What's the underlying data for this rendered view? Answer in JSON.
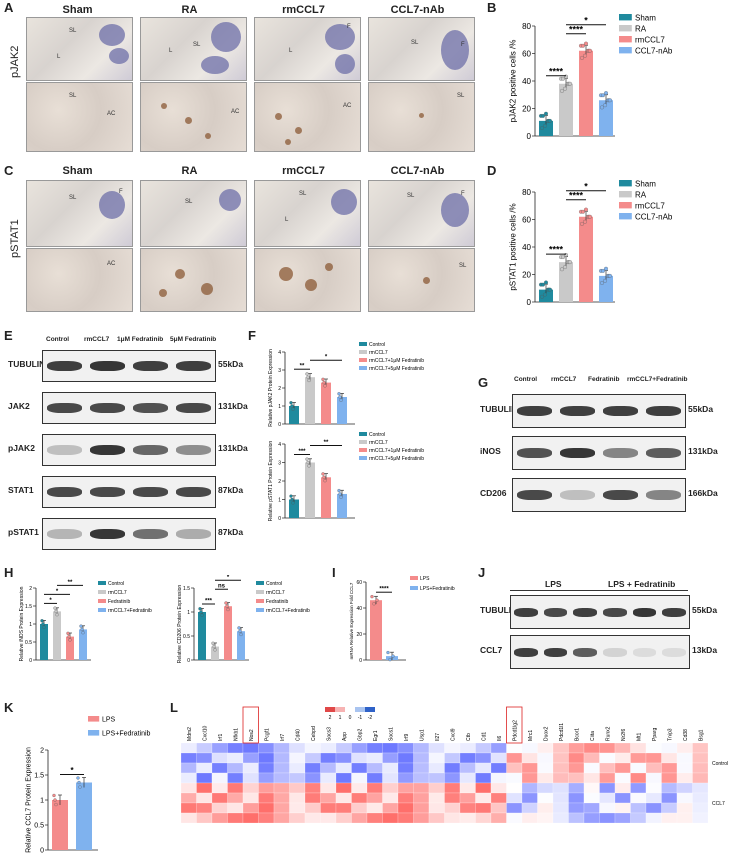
{
  "panels": {
    "A": "A",
    "B": "B",
    "C": "C",
    "D": "D",
    "E": "E",
    "F": "F",
    "G": "G",
    "H": "H",
    "I": "I",
    "J": "J",
    "K": "K",
    "L": "L"
  },
  "ihc_groups": [
    "Sham",
    "RA",
    "rmCCL7",
    "CCL7-nAb"
  ],
  "ihc_markers": {
    "a": "pJAK2",
    "c": "pSTAT1"
  },
  "tissue_labels": {
    "sl": "SL",
    "f": "F",
    "l": "L",
    "ac": "AC"
  },
  "colors": {
    "sham": "#1f8a9e",
    "ra": "#c9c9c9",
    "rmccl7": "#f48b8b",
    "nab": "#7fb2ee",
    "ctrl": "#1f8a9e"
  },
  "chart_data": [
    {
      "id": "B",
      "type": "bar",
      "categories": [
        "Sham",
        "RA",
        "rmCCL7",
        "CCL7-nAb"
      ],
      "values": [
        11,
        38,
        62,
        26
      ],
      "ylabel": "pJAK2 positive cells /%",
      "ylim": [
        0,
        80
      ],
      "yticks": [
        0,
        20,
        40,
        60,
        80
      ],
      "sig": [
        {
          "from": 0,
          "to": 1,
          "label": "****"
        },
        {
          "from": 1,
          "to": 2,
          "label": "****"
        },
        {
          "from": 1,
          "to": 3,
          "label": "*"
        }
      ],
      "legend": [
        "Sham",
        "RA",
        "rmCCL7",
        "CCL7-nAb"
      ]
    },
    {
      "id": "D",
      "type": "bar",
      "categories": [
        "Sham",
        "RA",
        "rmCCL7",
        "CCL7-nAb"
      ],
      "values": [
        9,
        29,
        62,
        19
      ],
      "ylabel": "pSTAT1 positive cells /%",
      "ylim": [
        0,
        80
      ],
      "yticks": [
        0,
        20,
        40,
        60,
        80
      ],
      "sig": [
        {
          "from": 0,
          "to": 1,
          "label": "****"
        },
        {
          "from": 1,
          "to": 2,
          "label": "****"
        },
        {
          "from": 1,
          "to": 3,
          "label": "*"
        }
      ],
      "legend": [
        "Sham",
        "RA",
        "rmCCL7",
        "CCL7-nAb"
      ]
    },
    {
      "id": "F1",
      "type": "bar",
      "categories": [
        "Control",
        "rmCCL7",
        "rmCCL7+1μM Fedratinib",
        "rmCCL7+5μM Fedratinib"
      ],
      "values": [
        1.0,
        2.6,
        2.3,
        1.5
      ],
      "ylabel": "Relative pJAK2 Protein Expression",
      "ylim": [
        0,
        4
      ],
      "yticks": [
        0,
        1,
        2,
        3,
        4
      ],
      "sig": [
        {
          "from": 0,
          "to": 1,
          "label": "**"
        },
        {
          "from": 1,
          "to": 3,
          "label": "*"
        }
      ],
      "legend": [
        "Control",
        "rmCCL7",
        "rmCCL7+1μM  Fedratinib",
        "rmCCL7+5μM  Fedratinib"
      ]
    },
    {
      "id": "F2",
      "type": "bar",
      "categories": [
        "Control",
        "rmCCL7",
        "rmCCL7+1μM Fedratinib",
        "rmCCL7+5μM Fedratinib"
      ],
      "values": [
        1.0,
        3.0,
        2.2,
        1.3
      ],
      "ylabel": "Relative pSTAT1 Protein Expression",
      "ylim": [
        0,
        4
      ],
      "yticks": [
        0,
        1,
        2,
        3,
        4
      ],
      "sig": [
        {
          "from": 0,
          "to": 1,
          "label": "***"
        },
        {
          "from": 1,
          "to": 3,
          "label": "**"
        }
      ],
      "legend": [
        "Control",
        "rmCCL7",
        "rmCCL7+1μM Fedratinib",
        "rmCCL7+5μM Fedratinib"
      ]
    },
    {
      "id": "H1",
      "type": "bar",
      "categories": [
        "Control",
        "rmCCL7",
        "Fedratinib",
        "rmCCL7+Fedratinib"
      ],
      "values": [
        1.0,
        1.35,
        0.65,
        0.85
      ],
      "ylabel": "Relative iNOS Protein Expression",
      "ylim": [
        0,
        2
      ],
      "yticks": [
        0,
        0.5,
        1.0,
        1.5,
        2.0
      ],
      "sig": [
        {
          "from": 0,
          "to": 1,
          "label": "*"
        },
        {
          "from": 0,
          "to": 2,
          "label": "*"
        },
        {
          "from": 1,
          "to": 3,
          "label": "**"
        }
      ],
      "legend": [
        "Control",
        "rmCCL7",
        "Fedratinib",
        "rmCCL7+Fedratinib"
      ]
    },
    {
      "id": "H2",
      "type": "bar",
      "categories": [
        "Control",
        "rmCCL7",
        "Fedratinib",
        "rmCCL7+Fedratinib"
      ],
      "values": [
        1.0,
        0.28,
        1.12,
        0.6
      ],
      "ylabel": "Relative CD206 Protein Expression",
      "ylim": [
        0,
        1.5
      ],
      "yticks": [
        0,
        0.5,
        1.0,
        1.5
      ],
      "sig": [
        {
          "from": 0,
          "to": 1,
          "label": "***"
        },
        {
          "from": 1,
          "to": 2,
          "label": "ns"
        },
        {
          "from": 1,
          "to": 3,
          "label": "*"
        }
      ],
      "legend": [
        "Control",
        "rmCCL7",
        "Fedratinib",
        "rmCCL7+Fedratinib"
      ]
    },
    {
      "id": "I",
      "type": "bar",
      "categories": [
        "LPS",
        "LPS+Fedratinib"
      ],
      "values": [
        46,
        3
      ],
      "ylabel": "mRNA Relative Expression Fold CCL7",
      "ylim": [
        0,
        60
      ],
      "yticks": [
        0,
        20,
        40,
        60
      ],
      "sig": [
        {
          "from": 0,
          "to": 1,
          "label": "****"
        }
      ],
      "legend": [
        "LPS",
        "LPS+Fedratinib"
      ]
    },
    {
      "id": "K",
      "type": "bar",
      "categories": [
        "LPS",
        "LPS+Fedratinib"
      ],
      "values": [
        1.0,
        1.35
      ],
      "ylabel": "Relative CCL7 Protein Expression",
      "ylim": [
        0,
        2
      ],
      "yticks": [
        0,
        0.5,
        1.0,
        1.5,
        2.0
      ],
      "sig": [
        {
          "from": 0,
          "to": 1,
          "label": "*"
        }
      ],
      "legend": [
        "LPS",
        "LPS+Fedratinib"
      ]
    }
  ],
  "wb_E": {
    "headers": [
      "Control",
      "rmCCL7",
      "1μM Fedratinib",
      "5μM Fedratinib"
    ],
    "rows": [
      {
        "label": "TUBULIN",
        "kda": "55kDa"
      },
      {
        "label": "JAK2",
        "kda": "131kDa"
      },
      {
        "label": "pJAK2",
        "kda": "131kDa"
      },
      {
        "label": "STAT1",
        "kda": "87kDa"
      },
      {
        "label": "pSTAT1",
        "kda": "87kDa"
      }
    ]
  },
  "wb_G": {
    "headers": [
      "Control",
      "rmCCL7",
      "Fedratinib",
      "rmCCL7+Fedratinib"
    ],
    "rows": [
      {
        "label": "TUBULIN",
        "kda": "55kDa"
      },
      {
        "label": "iNOS",
        "kda": "131kDa"
      },
      {
        "label": "CD206",
        "kda": "166kDa"
      }
    ]
  },
  "wb_J": {
    "headers": [
      "LPS",
      "LPS + Fedratinib"
    ],
    "rows": [
      {
        "label": "TUBULIN",
        "kda": "55kDa"
      },
      {
        "label": "CCL7",
        "kda": "13kDa"
      }
    ]
  },
  "heatmap": {
    "genes": [
      "Mdm2",
      "Cxcl10",
      "Irf1",
      "Nfkb1",
      "Nos2",
      "Pcgf1",
      "Irf7",
      "Cd40",
      "Cebpd",
      "Socs3",
      "App",
      "Gbp2",
      "Egr1",
      "Socs1",
      "Irf9",
      "Usp1",
      "Il27",
      "Cxcl9",
      "Ctb",
      "Cd1",
      "Il6",
      "Pdcd1lg2",
      "Mrc1",
      "Duox2",
      "Pdcd1l1",
      "Bcor1",
      "Ciita",
      "Runx2",
      "Nr2f6",
      "Mt1",
      "Pparg",
      "Tnip3",
      "Cd38",
      "Bsg1"
    ],
    "row_labels": [
      "Control",
      "CCL7"
    ],
    "scale_ticks": [
      "2",
      "1",
      "0",
      "-1",
      "-2"
    ]
  }
}
